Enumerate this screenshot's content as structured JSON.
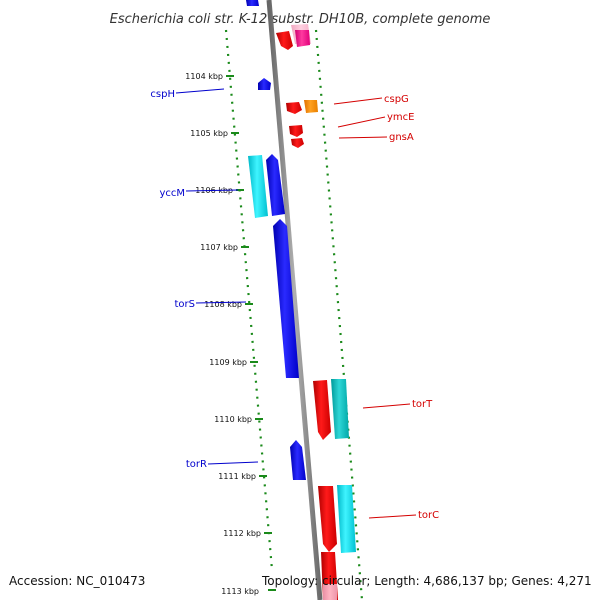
{
  "title": "Escherichia coli str. K-12 substr. DH10B, complete genome",
  "ticks": [
    "1104 kbp",
    "1105 kbp",
    "1106 kbp",
    "1107 kbp",
    "1108 kbp",
    "1109 kbp",
    "1110 kbp",
    "1111 kbp",
    "1112 kbp",
    "1113 kbp"
  ],
  "left_genes": [
    "cspH",
    "yccM",
    "torS",
    "torR"
  ],
  "right_genes": [
    "cspG",
    "ymcE",
    "gnsA",
    "torT",
    "torC"
  ],
  "footer": {
    "accession": "Accession: NC_010473",
    "topology": "Topology: circular; Length: 4,686,137 bp; Genes: 4,271"
  },
  "colors": {
    "title": "#333333",
    "left_label": "#0000cc",
    "right_label": "#d40000",
    "dots": "#1a8a1a",
    "backbone": "#888888"
  }
}
